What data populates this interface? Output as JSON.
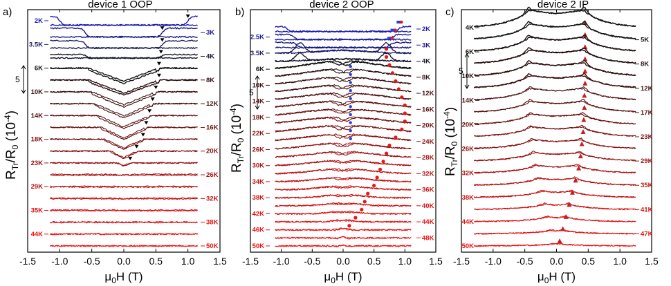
{
  "chart_data": [
    {
      "type": "line",
      "panel": "a)",
      "title": "device 1 OOP",
      "xlabel_main": "μ",
      "xlabel_sub": "0",
      "xlabel_rest": "H (T)",
      "ylabel_main": "R",
      "ylabel_sub": "Tr",
      "ylabel_rest": "/R",
      "ylabel_sub2": "0",
      "ylabel_units": " (10",
      "ylabel_exp": "-4",
      "ylabel_close": ")",
      "xlim": [
        -1.5,
        1.5
      ],
      "xticks": [
        "-1.5",
        "-1.0",
        "-0.5",
        "0.0",
        "0.5",
        "1.0",
        "1.5"
      ],
      "scale_bar": "5",
      "x_range": [
        -1.15,
        1.15
      ],
      "switching_field_T": 0.55,
      "series": [
        {
          "name": "2K",
          "side": "left",
          "color": "#1a1ab4",
          "amp": 3.0,
          "hc": 1.0,
          "kind": "flat"
        },
        {
          "name": "3K",
          "side": "right",
          "color": "#14148c",
          "amp": 3.0,
          "hc": 0.6,
          "kind": "flat"
        },
        {
          "name": "3.5K",
          "side": "left",
          "color": "#1e1e64",
          "amp": 2.5,
          "hc": 0.6,
          "kind": "flat"
        },
        {
          "name": "4K",
          "side": "right",
          "color": "#141428",
          "amp": 1.2,
          "hc": 0.58,
          "kind": "flat"
        },
        {
          "name": "6K",
          "side": "left",
          "color": "#141414",
          "amp": 3.0,
          "hc": 0.55,
          "kind": "valley"
        },
        {
          "name": "8K",
          "side": "right",
          "color": "#2a1010",
          "amp": 3.0,
          "hc": 0.55,
          "kind": "valley"
        },
        {
          "name": "10K",
          "side": "left",
          "color": "#3a1010",
          "amp": 3.0,
          "hc": 0.5,
          "kind": "valley"
        },
        {
          "name": "12K",
          "side": "right",
          "color": "#4a1010",
          "amp": 2.8,
          "hc": 0.45,
          "kind": "valley"
        },
        {
          "name": "14K",
          "side": "left",
          "color": "#5a1010",
          "amp": 2.6,
          "hc": 0.4,
          "kind": "valley"
        },
        {
          "name": "16K",
          "side": "right",
          "color": "#6a1010",
          "amp": 2.4,
          "hc": 0.35,
          "kind": "valley"
        },
        {
          "name": "18K",
          "side": "left",
          "color": "#7a1010",
          "amp": 2.0,
          "hc": 0.3,
          "kind": "valley"
        },
        {
          "name": "20K",
          "side": "right",
          "color": "#8a1010",
          "amp": 1.5,
          "hc": 0.2,
          "kind": "valley"
        },
        {
          "name": "23K",
          "side": "left",
          "color": "#9c1010",
          "amp": 0.6,
          "hc": 0.1,
          "kind": "valley"
        },
        {
          "name": "26K",
          "side": "right",
          "color": "#ad1010",
          "amp": 0.3,
          "hc": 0.05,
          "kind": "flat"
        },
        {
          "name": "29K",
          "side": "left",
          "color": "#bd1010",
          "amp": 0.2,
          "hc": 0.05,
          "kind": "flat"
        },
        {
          "name": "32K",
          "side": "right",
          "color": "#cc1010",
          "amp": 0.2,
          "hc": 0.05,
          "kind": "flat"
        },
        {
          "name": "35K",
          "side": "left",
          "color": "#dc1010",
          "amp": 0.2,
          "hc": 0.05,
          "kind": "flat"
        },
        {
          "name": "38K",
          "side": "right",
          "color": "#e81010",
          "amp": 0.15,
          "hc": 0.05,
          "kind": "flat"
        },
        {
          "name": "44K",
          "side": "left",
          "color": "#f01010",
          "amp": 0.1,
          "hc": 0.05,
          "kind": "flat"
        },
        {
          "name": "50K",
          "side": "right",
          "color": "#f81010",
          "amp": 0.1,
          "hc": 0.05,
          "kind": "flat"
        }
      ]
    },
    {
      "type": "line",
      "panel": "b)",
      "title": "device 2 OOP",
      "xlabel_main": "μ",
      "xlabel_sub": "0",
      "xlabel_rest": "H (T)",
      "ylabel_main": "R",
      "ylabel_sub": "Tr",
      "ylabel_rest": "/R",
      "ylabel_sub2": "0",
      "ylabel_units": " (10",
      "ylabel_exp": "-4",
      "ylabel_close": ")",
      "xlim": [
        -1.5,
        1.5
      ],
      "xticks": [
        "-1.5",
        "-1.0",
        "-0.5",
        "0.0",
        "0.5",
        "1.0",
        "1.5"
      ],
      "scale_bar": "5",
      "x_range": [
        -1.1,
        1.1
      ],
      "series": [
        {
          "name": "2K",
          "side": "right",
          "color": "#1a1ab4",
          "amp": 1.5,
          "hc": 0.9,
          "kind": "flat"
        },
        {
          "name": "2.5K",
          "side": "left",
          "color": "#1a1a9c",
          "amp": 1.5,
          "hc": 0.8,
          "kind": "flat"
        },
        {
          "name": "3K",
          "side": "right",
          "color": "#14148c",
          "amp": 1.5,
          "hc": 0.75,
          "kind": "flat"
        },
        {
          "name": "3.5K",
          "side": "left",
          "color": "#1e1e64",
          "amp": 2.5,
          "hc": 0.7,
          "kind": "peaks"
        },
        {
          "name": "4K",
          "side": "right",
          "color": "#141428",
          "amp": 2.0,
          "hc": 0.7,
          "kind": "peaks"
        },
        {
          "name": "6K",
          "side": "left",
          "color": "#141414",
          "amp": 2.5,
          "hc": 0.75,
          "kind": "dome"
        },
        {
          "name": "8K",
          "side": "right",
          "color": "#2a1010",
          "amp": 2.5,
          "hc": 0.8,
          "kind": "dome"
        },
        {
          "name": "10K",
          "side": "left",
          "color": "#381010",
          "amp": 2.5,
          "hc": 0.85,
          "kind": "dome"
        },
        {
          "name": "12K",
          "side": "right",
          "color": "#441010",
          "amp": 2.5,
          "hc": 0.9,
          "kind": "dome"
        },
        {
          "name": "14K",
          "side": "left",
          "color": "#501010",
          "amp": 2.5,
          "hc": 0.95,
          "kind": "dome"
        },
        {
          "name": "16K",
          "side": "right",
          "color": "#5c1010",
          "amp": 2.5,
          "hc": 1.0,
          "kind": "dome"
        },
        {
          "name": "18K",
          "side": "left",
          "color": "#681010",
          "amp": 2.5,
          "hc": 1.0,
          "kind": "dome"
        },
        {
          "name": "20K",
          "side": "right",
          "color": "#741010",
          "amp": 2.5,
          "hc": 1.0,
          "kind": "dome"
        },
        {
          "name": "22K",
          "side": "left",
          "color": "#801010",
          "amp": 2.4,
          "hc": 0.95,
          "kind": "dome"
        },
        {
          "name": "24K",
          "side": "right",
          "color": "#8c1010",
          "amp": 2.2,
          "hc": 0.85,
          "kind": "dome"
        },
        {
          "name": "26K",
          "side": "left",
          "color": "#981010",
          "amp": 2.0,
          "hc": 0.75,
          "kind": "dome"
        },
        {
          "name": "28K",
          "side": "right",
          "color": "#a41010",
          "amp": 1.8,
          "hc": 0.7,
          "kind": "dome"
        },
        {
          "name": "30K",
          "side": "left",
          "color": "#b01010",
          "amp": 1.6,
          "hc": 0.65,
          "kind": "dome"
        },
        {
          "name": "32K",
          "side": "right",
          "color": "#bc1010",
          "amp": 1.5,
          "hc": 0.6,
          "kind": "dome"
        },
        {
          "name": "34K",
          "side": "left",
          "color": "#c41010",
          "amp": 1.3,
          "hc": 0.55,
          "kind": "dome"
        },
        {
          "name": "36K",
          "side": "right",
          "color": "#cc1010",
          "amp": 1.1,
          "hc": 0.5,
          "kind": "dome"
        },
        {
          "name": "38K",
          "side": "left",
          "color": "#d41010",
          "amp": 1.0,
          "hc": 0.4,
          "kind": "dome"
        },
        {
          "name": "40K",
          "side": "right",
          "color": "#dc1010",
          "amp": 0.9,
          "hc": 0.35,
          "kind": "dome"
        },
        {
          "name": "42K",
          "side": "left",
          "color": "#e21010",
          "amp": 0.8,
          "hc": 0.3,
          "kind": "dome"
        },
        {
          "name": "44K",
          "side": "right",
          "color": "#e81010",
          "amp": 0.7,
          "hc": 0.2,
          "kind": "dome"
        },
        {
          "name": "46K",
          "side": "left",
          "color": "#ee1010",
          "amp": 0.6,
          "hc": 0.1,
          "kind": "dome"
        },
        {
          "name": "48K",
          "side": "right",
          "color": "#f41010",
          "amp": 0.4,
          "hc": 0.05,
          "kind": "dome"
        },
        {
          "name": "50K",
          "side": "left",
          "color": "#fa1010",
          "amp": 0.3,
          "hc": 0.02,
          "kind": "dome"
        }
      ]
    },
    {
      "type": "line",
      "panel": "c)",
      "title": "device 2 IP",
      "xlabel_main": "μ",
      "xlabel_sub": "0",
      "xlabel_rest": "H (T)",
      "ylabel_main": "R",
      "ylabel_sub": "Tr",
      "ylabel_rest": "/R",
      "ylabel_sub2": "0",
      "ylabel_units": " (10",
      "ylabel_exp": "-4",
      "ylabel_close": ")",
      "xlim": [
        -1.5,
        1.5
      ],
      "xticks": [
        "-1.5",
        "-1.0",
        "-0.5",
        "0.0",
        "0.5",
        "1.0",
        "1.5"
      ],
      "scale_bar": "5",
      "x_range": [
        -1.3,
        1.25
      ],
      "series": [
        {
          "name": "4K",
          "side": "left",
          "color": "#141414",
          "amp": 5.0,
          "hc": 0.45,
          "kind": "ip"
        },
        {
          "name": "5K",
          "side": "right",
          "color": "#141414",
          "amp": 4.5,
          "hc": 0.45,
          "kind": "ip"
        },
        {
          "name": "6K",
          "side": "left",
          "color": "#1c1010",
          "amp": 4.2,
          "hc": 0.45,
          "kind": "ip"
        },
        {
          "name": "8K",
          "side": "right",
          "color": "#241010",
          "amp": 4.0,
          "hc": 0.45,
          "kind": "ip"
        },
        {
          "name": "10K",
          "side": "left",
          "color": "#2c1010",
          "amp": 3.8,
          "hc": 0.45,
          "kind": "ip"
        },
        {
          "name": "12K",
          "side": "right",
          "color": "#3c1010",
          "amp": 3.6,
          "hc": 0.45,
          "kind": "ip"
        },
        {
          "name": "14K",
          "side": "left",
          "color": "#4c1010",
          "amp": 3.4,
          "hc": 0.44,
          "kind": "ip"
        },
        {
          "name": "17K",
          "side": "right",
          "color": "#5c1010",
          "amp": 3.2,
          "hc": 0.44,
          "kind": "ip"
        },
        {
          "name": "20K",
          "side": "left",
          "color": "#6c1010",
          "amp": 3.0,
          "hc": 0.43,
          "kind": "ip"
        },
        {
          "name": "23K",
          "side": "right",
          "color": "#7c1010",
          "amp": 2.8,
          "hc": 0.42,
          "kind": "ip"
        },
        {
          "name": "26K",
          "side": "left",
          "color": "#8c1010",
          "amp": 2.6,
          "hc": 0.4,
          "kind": "ip"
        },
        {
          "name": "29K",
          "side": "right",
          "color": "#9c1010",
          "amp": 2.4,
          "hc": 0.38,
          "kind": "ip"
        },
        {
          "name": "32K",
          "side": "left",
          "color": "#ac1010",
          "amp": 2.2,
          "hc": 0.35,
          "kind": "ip"
        },
        {
          "name": "35K",
          "side": "right",
          "color": "#bc1010",
          "amp": 2.0,
          "hc": 0.3,
          "kind": "ip"
        },
        {
          "name": "38K",
          "side": "left",
          "color": "#cc1010",
          "amp": 1.8,
          "hc": 0.25,
          "kind": "ip"
        },
        {
          "name": "41K",
          "side": "right",
          "color": "#d81010",
          "amp": 1.6,
          "hc": 0.2,
          "kind": "ip"
        },
        {
          "name": "44K",
          "side": "left",
          "color": "#e41010",
          "amp": 1.4,
          "hc": 0.15,
          "kind": "ip"
        },
        {
          "name": "47K",
          "side": "right",
          "color": "#ee1010",
          "amp": 1.0,
          "hc": 0.1,
          "kind": "ip"
        },
        {
          "name": "50K",
          "side": "left",
          "color": "#f81010",
          "amp": 0.6,
          "hc": 0.05,
          "kind": "ip"
        }
      ]
    }
  ]
}
